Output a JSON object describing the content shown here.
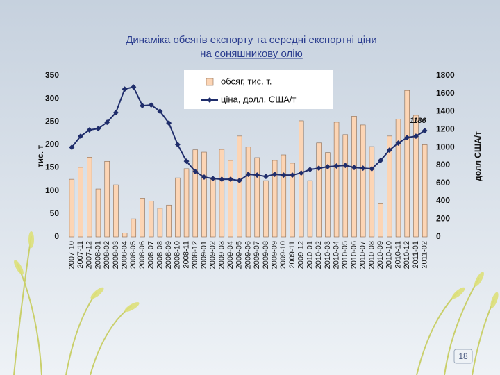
{
  "chart_data": {
    "type": "bar_line",
    "title": [
      "Динаміка обсягів експорту та середні експортні ціни",
      "на ",
      "соняшникову олію"
    ],
    "y_label": "тис. т",
    "y2_label": "долл США/т",
    "categories": [
      "2007-10",
      "2007-11",
      "2007-12",
      "2008-01",
      "2008-02",
      "2008-03",
      "2008-04",
      "2008-05",
      "2008-06",
      "2008-07",
      "2008-08",
      "2008-09",
      "2008-10",
      "2008-11",
      "2008-12",
      "2009-01",
      "2009-02",
      "2009-03",
      "2009-04",
      "2009-05",
      "2009-06",
      "2009-07",
      "2009-08",
      "2009-09",
      "2009-10",
      "2009-11",
      "2009-12",
      "2010-01",
      "2010-02",
      "2010-03",
      "2010-04",
      "2010-05",
      "2010-06",
      "2010-07",
      "2010-08",
      "2010-09",
      "2010-10",
      "2010-11",
      "2010-12",
      "2011-01",
      "2011-02"
    ],
    "series": [
      {
        "name": "обсяг, тис. т.",
        "type": "bar",
        "color": "#fcd5b5",
        "values": [
          125,
          151,
          173,
          104,
          164,
          113,
          8,
          39,
          84,
          78,
          62,
          69,
          128,
          148,
          189,
          184,
          128,
          190,
          166,
          219,
          195,
          172,
          122,
          166,
          178,
          160,
          252,
          122,
          204,
          183,
          249,
          222,
          262,
          243,
          196,
          72,
          219,
          256,
          318,
          264,
          200
        ]
      },
      {
        "name": "ціна, долл. США/т",
        "type": "line",
        "axis": "y2",
        "color": "#1f2d6b",
        "values": [
          1000,
          1124,
          1194,
          1209,
          1279,
          1388,
          1651,
          1674,
          1465,
          1473,
          1403,
          1271,
          1031,
          845,
          729,
          667,
          651,
          643,
          643,
          628,
          698,
          690,
          674,
          698,
          690,
          690,
          713,
          752,
          767,
          783,
          791,
          798,
          775,
          767,
          760,
          853,
          969,
          1047,
          1109,
          1124,
          1186
        ],
        "value_labels": [
          null,
          null,
          null,
          null,
          null,
          null,
          null,
          null,
          null,
          null,
          null,
          null,
          null,
          null,
          null,
          null,
          null,
          null,
          null,
          null,
          null,
          null,
          null,
          null,
          null,
          null,
          null,
          null,
          null,
          null,
          null,
          null,
          null,
          null,
          null,
          null,
          null,
          null,
          null,
          null,
          "1186"
        ]
      }
    ],
    "ylim": [
      0,
      350
    ],
    "yticks": [
      0,
      50,
      100,
      150,
      200,
      250,
      300,
      350
    ],
    "y2lim": [
      0,
      1800
    ],
    "y2ticks": [
      0,
      200,
      400,
      600,
      800,
      1000,
      1200,
      1400,
      1600,
      1800
    ],
    "legend": "top"
  },
  "page_number": "18"
}
